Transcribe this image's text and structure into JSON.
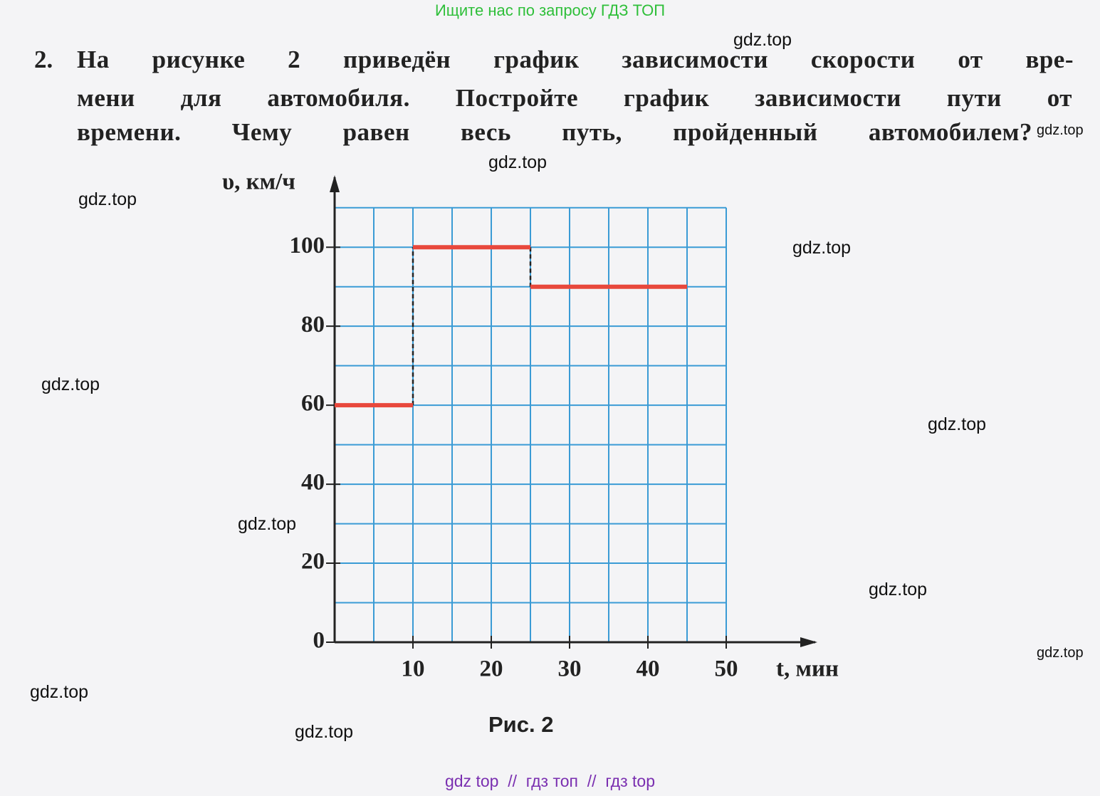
{
  "header": {
    "text": "Ищите нас по запросу ГДЗ ТОП"
  },
  "problem": {
    "number": "2.",
    "lines": [
      "На рисунке 2 приведён график зависимости скорости от вре-",
      "мени для автомобиля. Постройте график зависимости пути от",
      "времени. Чему равен весь путь, пройденный автомобилем?"
    ]
  },
  "chart_data": {
    "type": "line",
    "y_label": "υ, км/ч",
    "x_label": "t, мин",
    "caption": "Рис. 2",
    "x": [
      0,
      10,
      10,
      10,
      25,
      25,
      25,
      45
    ],
    "series": [
      {
        "color": "#e8483c",
        "values": [
          60,
          60,
          null,
          100,
          100,
          null,
          90,
          90
        ]
      }
    ],
    "xlim": [
      0,
      60
    ],
    "ylim": [
      0,
      115
    ],
    "xticks": [
      10,
      20,
      30,
      40,
      50
    ],
    "yticks": [
      0,
      20,
      40,
      60,
      80,
      100
    ],
    "grid": true,
    "grid_color": "#3a9bd5"
  },
  "watermarks": [
    "gdz.top",
    "gdz.top",
    "gdz.top",
    "gdz.top",
    "gdz.top",
    "gdz.top",
    "gdz.top",
    "gdz.top",
    "gdz.top",
    "gdz.top",
    "gdz.top",
    "gdz.top"
  ],
  "footer": {
    "text": "gdz top  //  гдз топ  //  гдз top"
  }
}
